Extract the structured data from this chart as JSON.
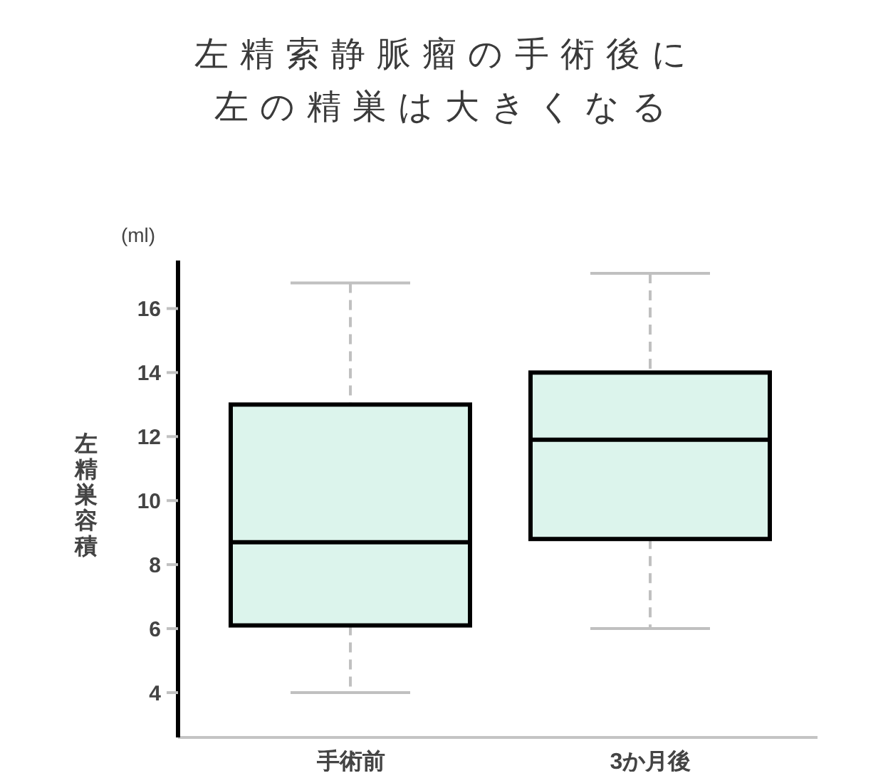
{
  "chart_data": {
    "type": "box",
    "title": "左精索静脈瘤の手術後に",
    "subtitle": "左の精巣は大きくなる",
    "ylabel": "左精巣容積",
    "annotations": [
      "(ml)"
    ],
    "categories": [
      "手術前",
      "3か月後"
    ],
    "color": "#dcf4ec",
    "boxes": [
      {
        "low": 4.0,
        "q1": 6.1,
        "median": 8.7,
        "q3": 13.0,
        "high": 16.8
      },
      {
        "low": 6.0,
        "q1": 8.8,
        "median": 11.9,
        "q3": 14.0,
        "high": 17.1
      }
    ],
    "ylim": [
      2.6,
      17.5
    ],
    "yticks": [
      4,
      6,
      8,
      10,
      12,
      14,
      16
    ]
  }
}
